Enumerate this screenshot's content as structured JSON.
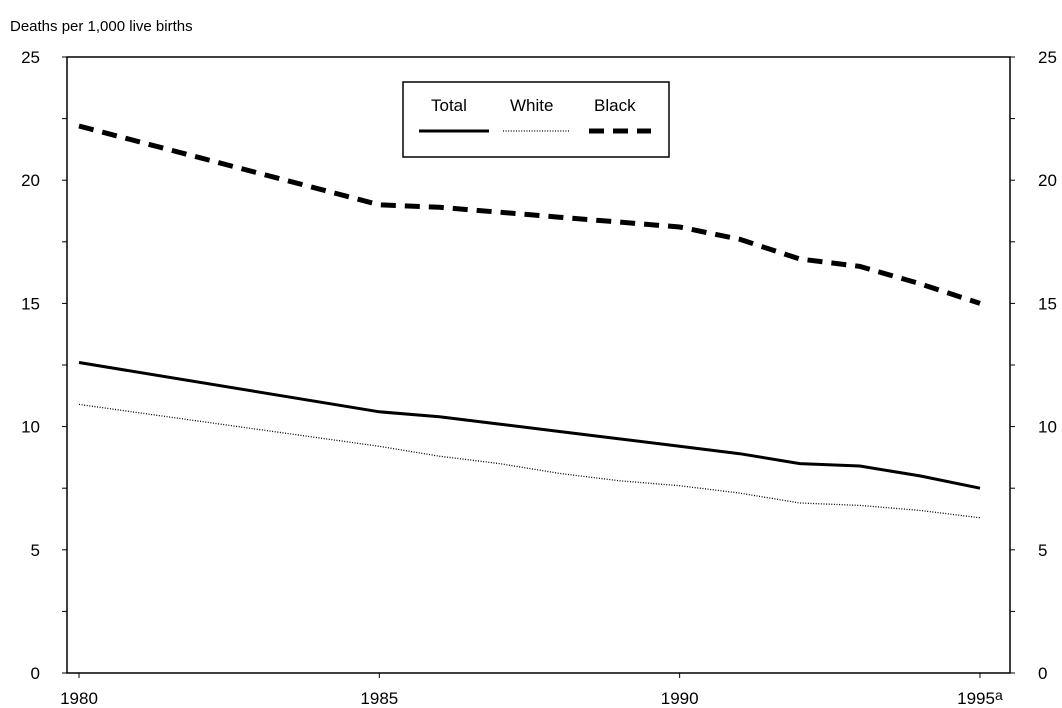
{
  "chart_data": {
    "type": "line",
    "title": "",
    "ylabel": "Deaths per 1,000 live births",
    "xlabel": "",
    "ylim": [
      0,
      25
    ],
    "xlim": [
      1979.8,
      1995.5
    ],
    "yticks": [
      "0",
      "5",
      "10",
      "15",
      "20",
      "25"
    ],
    "xticks": [
      {
        "value": 1980,
        "label": "1980"
      },
      {
        "value": 1985,
        "label": "1985"
      },
      {
        "value": 1990,
        "label": "1990"
      },
      {
        "value": 1995,
        "label": "1995",
        "superscript": "a"
      }
    ],
    "x": [
      1980,
      1985,
      1986,
      1987,
      1988,
      1989,
      1990,
      1991,
      1992,
      1993,
      1994,
      1995
    ],
    "series": [
      {
        "name": "Total",
        "style": "solid",
        "color": "#000000",
        "values": [
          12.6,
          10.6,
          10.4,
          10.1,
          9.8,
          9.5,
          9.2,
          8.9,
          8.5,
          8.4,
          8.0,
          7.5
        ]
      },
      {
        "name": "White",
        "style": "dotted",
        "color": "#000000",
        "values": [
          10.9,
          9.2,
          8.8,
          8.5,
          8.1,
          7.8,
          7.6,
          7.3,
          6.9,
          6.8,
          6.6,
          6.3
        ]
      },
      {
        "name": "Black",
        "style": "dashed",
        "color": "#000000",
        "values": [
          22.2,
          19.0,
          18.9,
          18.7,
          18.5,
          18.3,
          18.1,
          17.6,
          16.8,
          16.5,
          15.8,
          15.0
        ]
      }
    ],
    "legend_position": "top-center",
    "grid": false
  }
}
